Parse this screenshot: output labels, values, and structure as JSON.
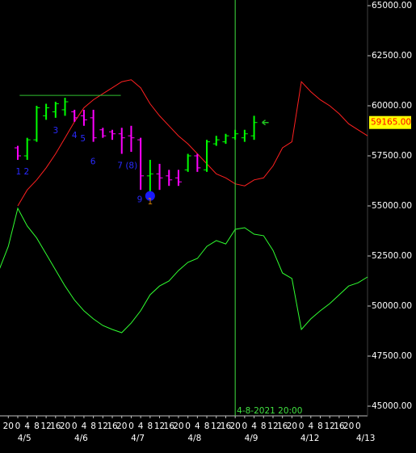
{
  "chart_data": {
    "type": "ohlc",
    "xlim": [
      -1.88,
      37.0
    ],
    "ylim": [
      44516,
      65282
    ],
    "yticks": [
      {
        "value": 45000,
        "label": "45000.00"
      },
      {
        "value": 47500,
        "label": "47500.00"
      },
      {
        "value": 50000,
        "label": "50000.00"
      },
      {
        "value": 52500,
        "label": "52500.00"
      },
      {
        "value": 55000,
        "label": "55000.00"
      },
      {
        "value": 57500,
        "label": "57500.00"
      },
      {
        "value": 60000,
        "label": "60000.00"
      },
      {
        "value": 62500,
        "label": "62500.00"
      },
      {
        "value": 65000,
        "label": "65000.00"
      }
    ],
    "hour_ticks": [
      {
        "value": -1,
        "label": "20"
      },
      {
        "value": 0,
        "label": "0"
      },
      {
        "value": 1,
        "label": "4"
      },
      {
        "value": 2,
        "label": "8"
      },
      {
        "value": 3,
        "label": "12"
      },
      {
        "value": 4,
        "label": "16"
      },
      {
        "value": 5,
        "label": "20"
      },
      {
        "value": 6,
        "label": "0"
      },
      {
        "value": 7,
        "label": "4"
      },
      {
        "value": 8,
        "label": "8"
      },
      {
        "value": 9,
        "label": "12"
      },
      {
        "value": 10,
        "label": "16"
      },
      {
        "value": 11,
        "label": "20"
      },
      {
        "value": 12,
        "label": "0"
      },
      {
        "value": 13,
        "label": "4"
      },
      {
        "value": 14,
        "label": "8"
      },
      {
        "value": 15,
        "label": "12"
      },
      {
        "value": 16,
        "label": "16"
      },
      {
        "value": 17,
        "label": "20"
      },
      {
        "value": 18,
        "label": "0"
      },
      {
        "value": 19,
        "label": "4"
      },
      {
        "value": 20,
        "label": "8"
      },
      {
        "value": 21,
        "label": "12"
      },
      {
        "value": 22,
        "label": "16"
      },
      {
        "value": 23,
        "label": "20"
      },
      {
        "value": 24,
        "label": "0"
      },
      {
        "value": 25,
        "label": "4"
      },
      {
        "value": 26,
        "label": "8"
      },
      {
        "value": 27,
        "label": "12"
      },
      {
        "value": 28,
        "label": "16"
      },
      {
        "value": 29,
        "label": "20"
      },
      {
        "value": 30,
        "label": "0"
      },
      {
        "value": 31,
        "label": "4"
      },
      {
        "value": 32,
        "label": "8"
      },
      {
        "value": 33,
        "label": "12"
      },
      {
        "value": 34,
        "label": "16"
      },
      {
        "value": 35,
        "label": "20"
      },
      {
        "value": 36,
        "label": "0"
      }
    ],
    "date_ticks": [
      {
        "value": 0.7,
        "label": "4/5"
      },
      {
        "value": 6.7,
        "label": "4/6"
      },
      {
        "value": 12.7,
        "label": "4/7"
      },
      {
        "value": 18.7,
        "label": "4/8"
      },
      {
        "value": 24.7,
        "label": "4/9"
      },
      {
        "value": 30.9,
        "label": "4/12"
      },
      {
        "value": 36.8,
        "label": "4/13"
      }
    ],
    "up_color": "#00ff00",
    "down_color": "#ff00ff",
    "x": [
      0,
      1,
      2,
      3,
      4,
      5,
      6,
      7,
      8,
      9,
      10,
      11,
      12,
      13,
      14,
      15,
      16,
      17,
      18,
      19,
      20,
      21,
      22,
      23,
      24,
      25
    ],
    "open": [
      57900,
      57500,
      58300,
      59500,
      59700,
      59800,
      59700,
      59500,
      59400,
      58800,
      58700,
      58600,
      58500,
      58300,
      56500,
      56600,
      56500,
      56400,
      56800,
      57500,
      56800,
      58100,
      58200,
      58400,
      58400,
      58500
    ],
    "high": [
      58000,
      58400,
      60000,
      60100,
      60200,
      60400,
      59800,
      59800,
      59800,
      58900,
      58800,
      58900,
      59000,
      58400,
      57300,
      57100,
      56800,
      56800,
      57600,
      57600,
      58300,
      58500,
      58600,
      58800,
      58800,
      59500
    ],
    "low": [
      57300,
      57300,
      58200,
      59300,
      59400,
      59500,
      59200,
      59000,
      58200,
      58400,
      58300,
      57600,
      57700,
      55800,
      55600,
      55800,
      56000,
      56000,
      56700,
      56700,
      56700,
      58000,
      58100,
      58300,
      58200,
      58300
    ],
    "close": [
      57500,
      58300,
      59900,
      59900,
      60100,
      60200,
      59400,
      59300,
      58400,
      58500,
      58600,
      58400,
      58400,
      56500,
      56600,
      56400,
      56300,
      56200,
      57500,
      56900,
      58200,
      58300,
      58500,
      58600,
      58600,
      59165
    ],
    "bands": [
      {
        "color": "#ff2020",
        "x": [
          0,
          1,
          2,
          3,
          4,
          5,
          6,
          7,
          8,
          9,
          10,
          11,
          12,
          13,
          14,
          15,
          16,
          17,
          18,
          19,
          20,
          21,
          22,
          23,
          24,
          25,
          26,
          27,
          28,
          29,
          30,
          31,
          32,
          33,
          34,
          35,
          36,
          37
        ],
        "values": [
          55000,
          55800,
          56300,
          56900,
          57600,
          58400,
          59200,
          59900,
          60300,
          60600,
          60900,
          61200,
          61300,
          60900,
          60100,
          59500,
          59000,
          58500,
          58100,
          57600,
          57100,
          56600,
          56400,
          56100,
          56000,
          56300,
          56400,
          57000,
          57900,
          58200,
          61200,
          60700,
          60300,
          60000,
          59600,
          59100,
          58800,
          58500
        ]
      },
      {
        "color": "#30ff30",
        "x": [
          -2,
          -1,
          0,
          1,
          2,
          3,
          4,
          5,
          6,
          7,
          8,
          9,
          10,
          11,
          12,
          13,
          14,
          15,
          16,
          17,
          18,
          19,
          20,
          21,
          22,
          23,
          24,
          25,
          26,
          27,
          28,
          29,
          30,
          31,
          32,
          33,
          34,
          35,
          36,
          37
        ],
        "values": [
          51770,
          52980,
          54880,
          54000,
          53400,
          52600,
          51800,
          51000,
          50300,
          49760,
          49360,
          49030,
          48830,
          48670,
          49150,
          49760,
          50560,
          51000,
          51250,
          51770,
          52180,
          52380,
          52980,
          53270,
          53100,
          53830,
          53910,
          53590,
          53510,
          52780,
          51650,
          51370,
          48830,
          49360,
          49760,
          50120,
          50560,
          51000,
          51160,
          51450
        ]
      }
    ],
    "hline": {
      "value": 60520,
      "x": [
        0.2,
        10.9
      ],
      "color": "#30c030"
    },
    "cursor": {
      "x": 23,
      "label": "4-8-2021 20:00",
      "color": "#40e040"
    },
    "marker": {
      "point": [
        14,
        55500
      ],
      "color": "#1a1aff"
    },
    "price_marker": {
      "value": 59165,
      "label": "59165.00"
    },
    "annotations": [
      {
        "text": "1 2",
        "x": 0.5,
        "y": 56700,
        "color": "#2a2aff"
      },
      {
        "text": "3",
        "x": 4.0,
        "y": 58750,
        "color": "#2a2aff"
      },
      {
        "text": "4",
        "x": 6.0,
        "y": 58500,
        "color": "#2a2aff"
      },
      {
        "text": "5",
        "x": 6.9,
        "y": 58350,
        "color": "#2a2aff"
      },
      {
        "text": "6",
        "x": 7.95,
        "y": 57200,
        "color": "#2a2aff"
      },
      {
        "text": "7 (8)",
        "x": 11.6,
        "y": 57000,
        "color": "#2a2aff"
      },
      {
        "text": "9",
        "x": 12.9,
        "y": 55300,
        "color": "#2a2aff"
      },
      {
        "text": "1",
        "x": 14.0,
        "y": 55200,
        "color": "#d08000"
      }
    ]
  }
}
